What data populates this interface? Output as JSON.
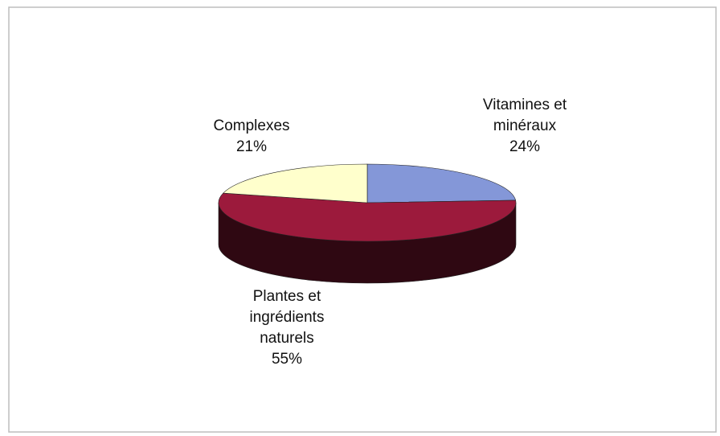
{
  "chart_data": {
    "type": "pie",
    "categories": [
      "Vitamines et minéraux",
      "Plantes et ingrédients naturels",
      "Complexes"
    ],
    "values": [
      24,
      55,
      21
    ],
    "value_labels": [
      "24%",
      "55%",
      "21%"
    ],
    "colors": [
      "#8497d8",
      "#9c1a3c",
      "#ffffcc"
    ],
    "three_d": true
  }
}
